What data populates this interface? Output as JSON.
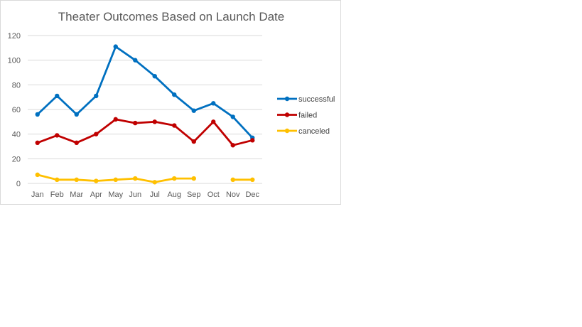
{
  "chart_data": {
    "type": "line",
    "title": "Theater Outcomes Based on Launch Date",
    "xlabel": "",
    "ylabel": "",
    "categories": [
      "Jan",
      "Feb",
      "Mar",
      "Apr",
      "May",
      "Jun",
      "Jul",
      "Aug",
      "Sep",
      "Oct",
      "Nov",
      "Dec"
    ],
    "ylim": [
      0,
      120
    ],
    "yticks": [
      0,
      20,
      40,
      60,
      80,
      100,
      120
    ],
    "grid": true,
    "legend_position": "right",
    "series": [
      {
        "name": "successful",
        "color": "#0070c0",
        "values": [
          56,
          71,
          56,
          71,
          111,
          100,
          87,
          72,
          59,
          65,
          54,
          37
        ]
      },
      {
        "name": "failed",
        "color": "#c00000",
        "values": [
          33,
          39,
          33,
          40,
          52,
          49,
          50,
          47,
          34,
          50,
          31,
          35
        ]
      },
      {
        "name": "canceled",
        "color": "#ffc000",
        "values": [
          7,
          3,
          3,
          2,
          3,
          4,
          1,
          4,
          4,
          null,
          3,
          3
        ]
      }
    ]
  }
}
